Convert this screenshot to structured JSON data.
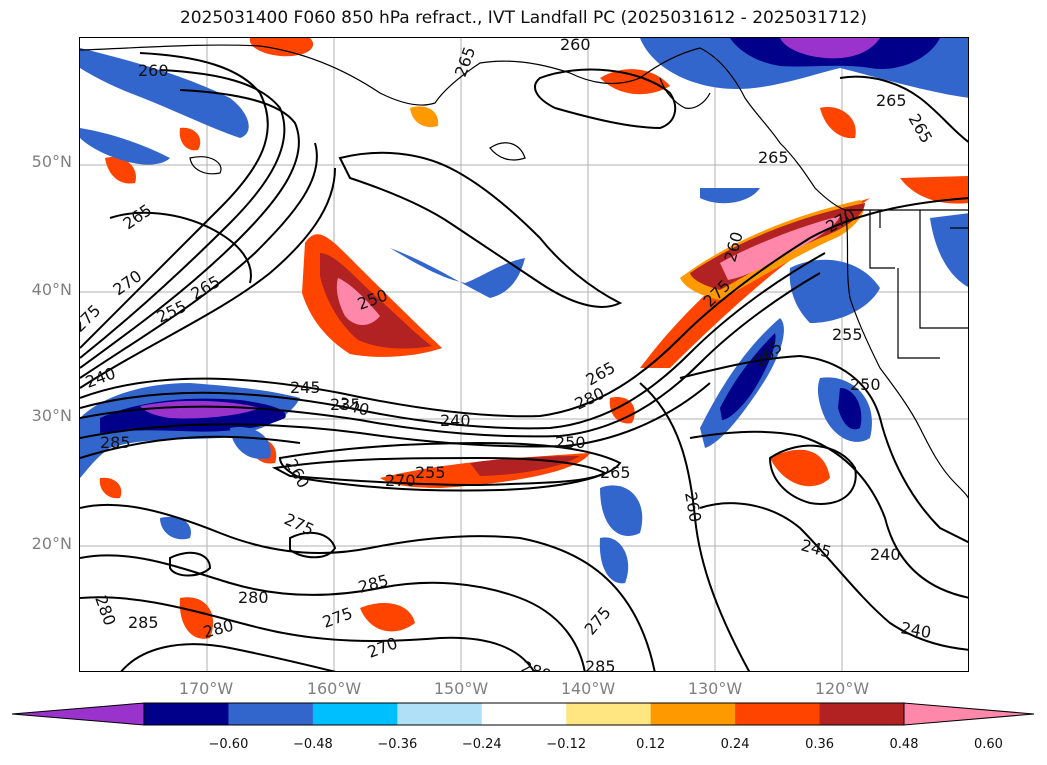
{
  "title": "2025031400 F060 850 hPa refract., IVT Landfall PC (2025031612 - 2025031712)",
  "lat_labels": [
    "50°N",
    "40°N",
    "30°N",
    "20°N"
  ],
  "lon_labels": [
    "170°W",
    "160°W",
    "150°W",
    "140°W",
    "130°W",
    "120°W"
  ],
  "colorbar": {
    "ticks": [
      "−0.60",
      "−0.48",
      "−0.36",
      "−0.24",
      "−0.12",
      "0.12",
      "0.24",
      "0.36",
      "0.48",
      "0.60"
    ],
    "colors": [
      "#9933cc",
      "#00008b",
      "#3366cc",
      "#00bfff",
      "#b0e0f8",
      "#ffffff",
      "#ffe680",
      "#ff9900",
      "#ff4400",
      "#b22222",
      "#ff88aa"
    ]
  },
  "contour_labels": [
    "260",
    "265",
    "260",
    "265",
    "265",
    "265",
    "270",
    "265",
    "275",
    "255",
    "250",
    "240",
    "245",
    "235",
    "240",
    "285",
    "255",
    "270",
    "260",
    "265",
    "280",
    "250",
    "265",
    "240",
    "265",
    "260",
    "270",
    "275",
    "265",
    "255",
    "250",
    "245",
    "240",
    "240",
    "275",
    "280",
    "285",
    "280",
    "285",
    "275",
    "270",
    "280",
    "280",
    "275",
    "285",
    "260"
  ],
  "colors": {
    "ocean": "#ffffff",
    "frame": "#000000",
    "gridline": "#b0b0b0",
    "axis_label": "#808080"
  }
}
